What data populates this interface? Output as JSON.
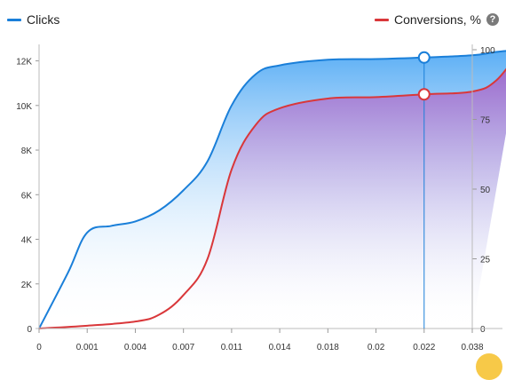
{
  "legend": {
    "left": {
      "label": "Clicks",
      "color": "#1a7fd9"
    },
    "right": {
      "label": "Conversions, %",
      "color": "#d9373a",
      "help_icon": "question-circle-icon"
    }
  },
  "chart_data": {
    "type": "area",
    "categories": [
      "0",
      "0.001",
      "0.004",
      "0.007",
      "0.011",
      "0.014",
      "0.018",
      "0.02",
      "0.022",
      "0.038"
    ],
    "series": [
      {
        "name": "Clicks",
        "axis": "left",
        "color": "#1a7fd9",
        "fill": "#63b3f5",
        "points": [
          [
            0,
            0
          ],
          [
            0.6,
            2500
          ],
          [
            1,
            4300
          ],
          [
            1.5,
            4600
          ],
          [
            2,
            4800
          ],
          [
            2.5,
            5300
          ],
          [
            3,
            6200
          ],
          [
            3.5,
            7500
          ],
          [
            4,
            10000
          ],
          [
            4.5,
            11400
          ],
          [
            5,
            11800
          ],
          [
            6,
            12050
          ],
          [
            7,
            12080
          ],
          [
            8,
            12150
          ],
          [
            9,
            12250
          ],
          [
            9.5,
            12400
          ],
          [
            10,
            12500
          ]
        ]
      },
      {
        "name": "Conversions, %",
        "axis": "right",
        "color": "#d9373a",
        "fill": "#a463c9",
        "points": [
          [
            0,
            0
          ],
          [
            1,
            1
          ],
          [
            2,
            2.5
          ],
          [
            2.5,
            5
          ],
          [
            3,
            12
          ],
          [
            3.5,
            25
          ],
          [
            4,
            57
          ],
          [
            4.5,
            73
          ],
          [
            5,
            79
          ],
          [
            6,
            82.5
          ],
          [
            7,
            83
          ],
          [
            8,
            84
          ],
          [
            9,
            85
          ],
          [
            9.5,
            89
          ],
          [
            10,
            100
          ]
        ]
      }
    ],
    "y_left": {
      "ticks": [
        "0",
        "2K",
        "4K",
        "6K",
        "8K",
        "10K",
        "12K"
      ],
      "range": [
        0,
        12500
      ]
    },
    "y_right": {
      "ticks": [
        "0",
        "25",
        "50",
        "75",
        "100"
      ],
      "range": [
        0,
        100
      ]
    },
    "crosshair": {
      "x_index": 8,
      "clicks": 12150,
      "conversions": 84
    }
  }
}
